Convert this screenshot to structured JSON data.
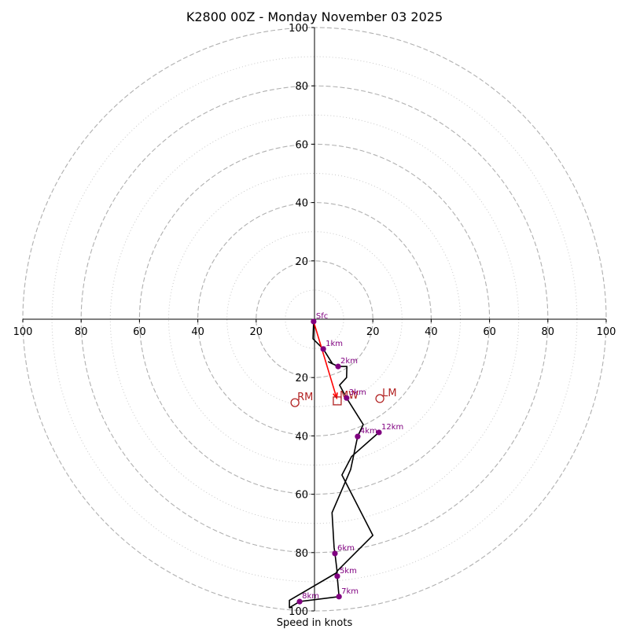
{
  "chart_data": {
    "type": "line",
    "subtype": "hodograph",
    "title": "K2800 00Z - Monday November 03 2025",
    "xlabel": "Speed in knots",
    "ylabel": "",
    "range": [
      -100,
      100
    ],
    "rings_major": [
      20,
      40,
      60,
      80,
      100
    ],
    "rings_minor": [
      10,
      30,
      50,
      70,
      90
    ],
    "x_tick_labels": [
      "100",
      "80",
      "60",
      "40",
      "20",
      "20",
      "40",
      "60",
      "80",
      "100"
    ],
    "x_ticks": [
      -100,
      -80,
      -60,
      -40,
      -20,
      20,
      40,
      60,
      80,
      100
    ],
    "y_tick_labels": [
      "100",
      "80",
      "60",
      "40",
      "20",
      "20",
      "40",
      "60",
      "80",
      "100"
    ],
    "y_ticks": [
      100,
      80,
      60,
      40,
      20,
      -20,
      -40,
      -60,
      -80,
      -100
    ],
    "grid": true,
    "hodograph_line": {
      "color": "#000000",
      "points_uv": [
        [
          -0.3,
          -0.8
        ],
        [
          -0.5,
          -6.7
        ],
        [
          3.0,
          -10.2
        ],
        [
          6.2,
          -15.3
        ],
        [
          4.8,
          -14.6
        ],
        [
          8.1,
          -16.2
        ],
        [
          11.1,
          -16.2
        ],
        [
          11.0,
          -20.0
        ],
        [
          8.6,
          -22.6
        ],
        [
          11.0,
          -27.0
        ],
        [
          16.7,
          -36.1
        ],
        [
          14.8,
          -40.2
        ],
        [
          12.4,
          -51.5
        ],
        [
          6.0,
          -66.3
        ],
        [
          6.7,
          -78.2
        ],
        [
          7.0,
          -80.3
        ],
        [
          7.8,
          -86.8
        ],
        [
          -8.6,
          -96.4
        ],
        [
          -8.6,
          -98.9
        ],
        [
          -5.1,
          -96.8
        ],
        [
          8.4,
          -95.1
        ],
        [
          7.8,
          -88.1
        ],
        [
          7.6,
          -86.5
        ],
        [
          20.0,
          -74.1
        ],
        [
          9.4,
          -53.4
        ],
        [
          12.7,
          -47.1
        ],
        [
          22.1,
          -38.8
        ]
      ]
    },
    "height_markers": {
      "color": "#800080",
      "points": [
        {
          "label": "Sfc",
          "u": -0.3,
          "v": -0.8
        },
        {
          "label": "1km",
          "u": 3.0,
          "v": -10.2
        },
        {
          "label": "2km",
          "u": 8.1,
          "v": -16.2
        },
        {
          "label": "3km",
          "u": 11.0,
          "v": -27.0
        },
        {
          "label": "4km",
          "u": 14.8,
          "v": -40.2
        },
        {
          "label": "5km",
          "u": 7.8,
          "v": -88.1
        },
        {
          "label": "6km",
          "u": 7.0,
          "v": -80.3
        },
        {
          "label": "7km",
          "u": 8.4,
          "v": -95.1
        },
        {
          "label": "8km",
          "u": -5.1,
          "v": -96.8
        },
        {
          "label": "12km",
          "u": 22.1,
          "v": -38.8
        }
      ]
    },
    "storm_motion": {
      "color": "#b22222",
      "arrow_color": "#ff0000",
      "arrow_from": {
        "u": -0.3,
        "v": -0.8
      },
      "arrow_to": {
        "u": 7.6,
        "v": -27.0
      },
      "points": [
        {
          "label": "RM",
          "u": -6.7,
          "v": -28.6,
          "marker": "circle"
        },
        {
          "label": "MW",
          "u": 7.8,
          "v": -28.0,
          "marker": "square"
        },
        {
          "label": "LM",
          "u": 22.4,
          "v": -27.2,
          "marker": "circle"
        }
      ]
    }
  }
}
